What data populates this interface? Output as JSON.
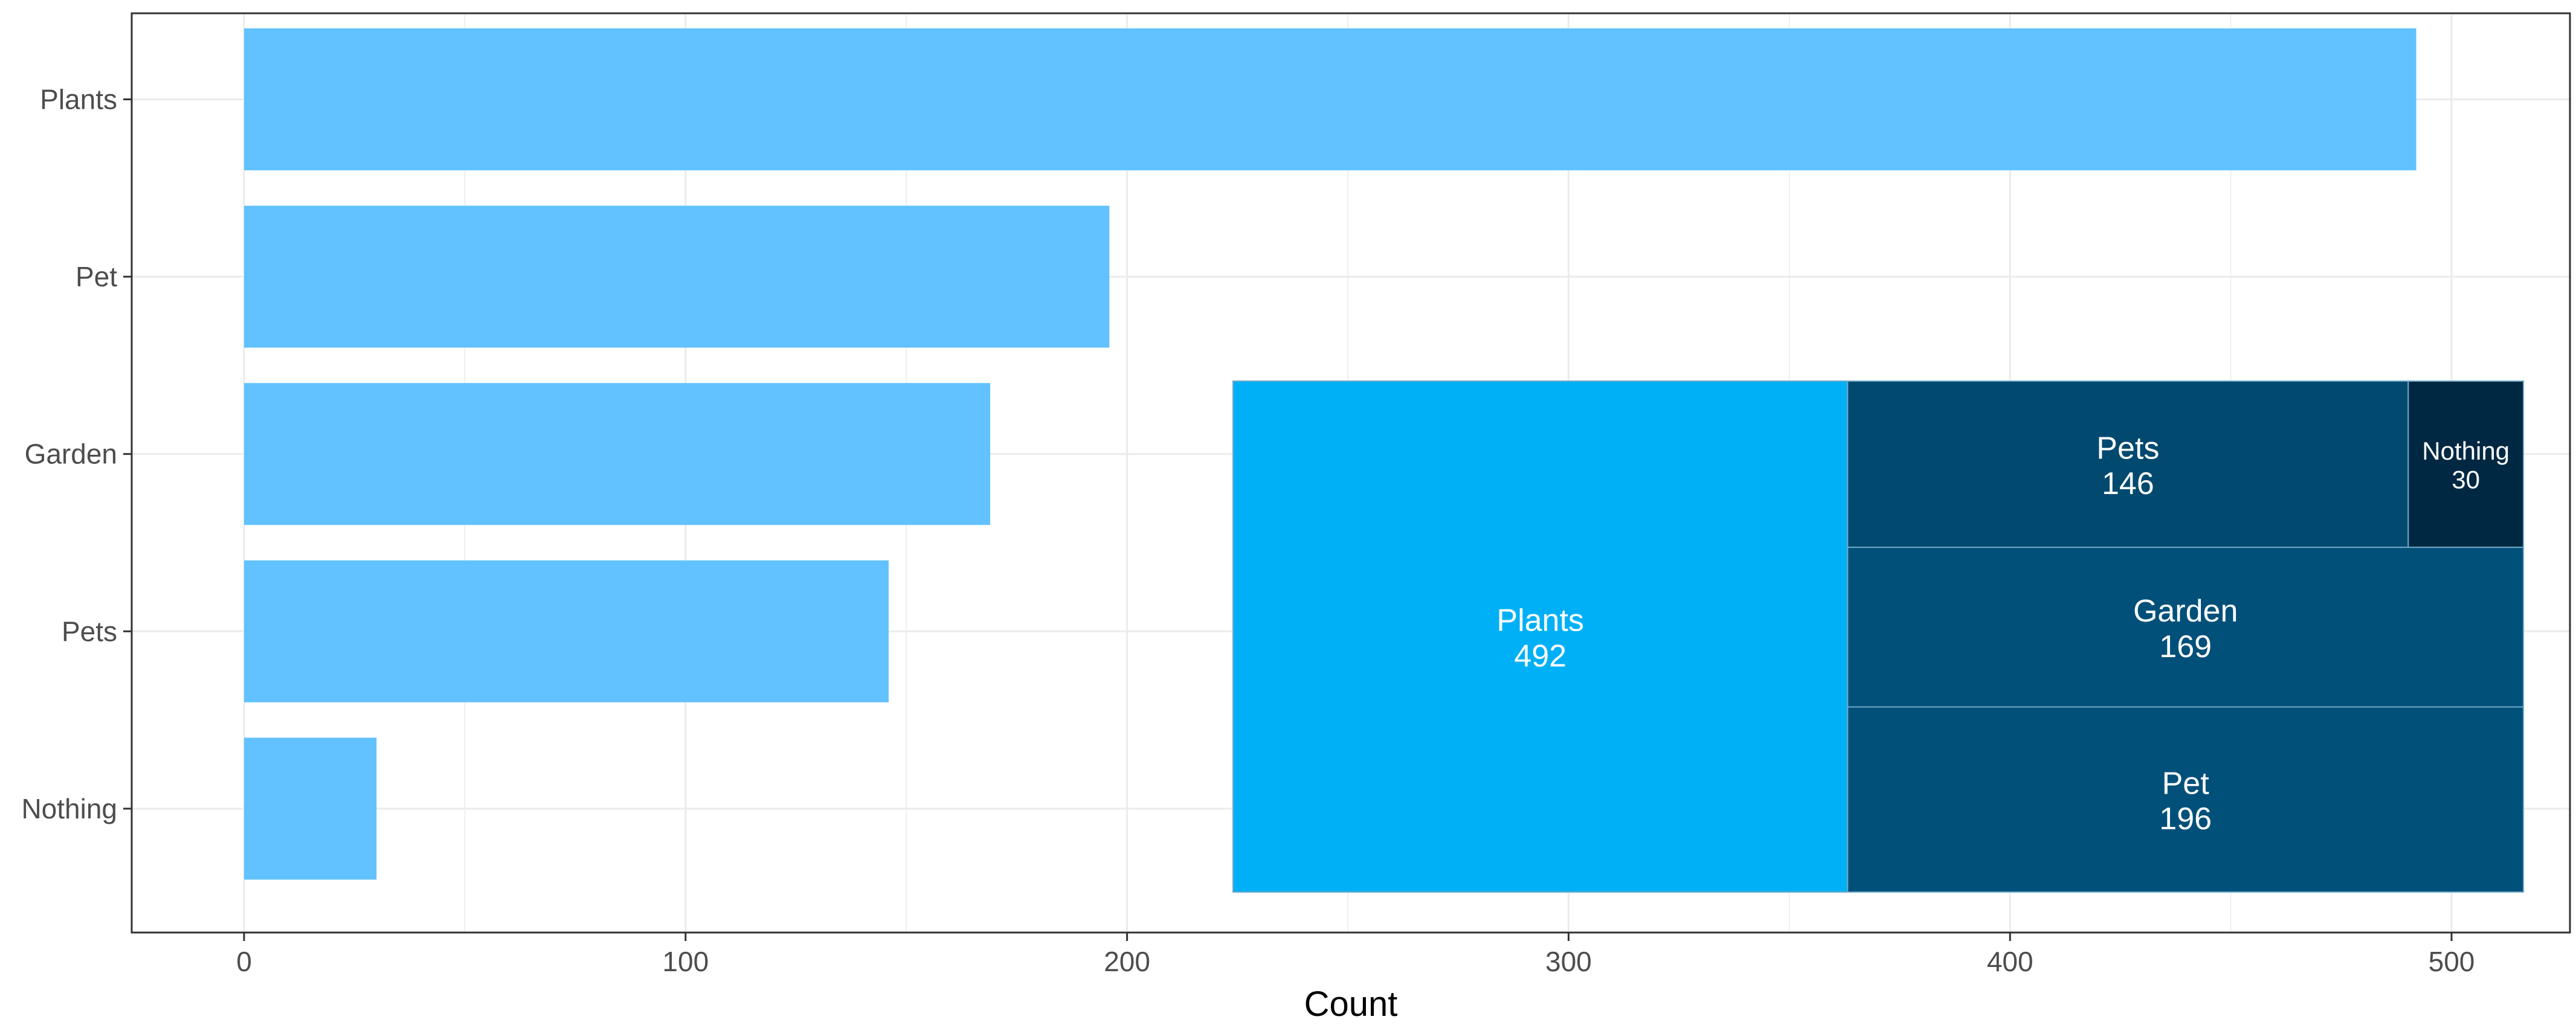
{
  "chart_data": [
    {
      "type": "bar",
      "orientation": "horizontal",
      "categories": [
        "Plants",
        "Pet",
        "Garden",
        "Pets",
        "Nothing"
      ],
      "values": [
        492,
        196,
        169,
        146,
        30
      ],
      "xlabel": "Count",
      "ylabel": "",
      "xlim": [
        -25,
        510
      ],
      "xticks": [
        "0",
        "100",
        "200",
        "300",
        "400",
        "500"
      ],
      "grid": true,
      "bar_color": "#62C2FF"
    },
    {
      "type": "treemap",
      "nodes": [
        {
          "name": "Plants",
          "value": 492,
          "value_label": "492",
          "color": "#00B0F6"
        },
        {
          "name": "Pet",
          "value": 196,
          "value_label": "196",
          "color": "#01507A"
        },
        {
          "name": "Garden",
          "value": 169,
          "value_label": "169",
          "color": "#01507A"
        },
        {
          "name": "Pets",
          "value": 146,
          "value_label": "146",
          "color": "#01496F"
        },
        {
          "name": "Nothing",
          "value": 30,
          "value_label": "30",
          "color": "#012842"
        }
      ]
    }
  ]
}
